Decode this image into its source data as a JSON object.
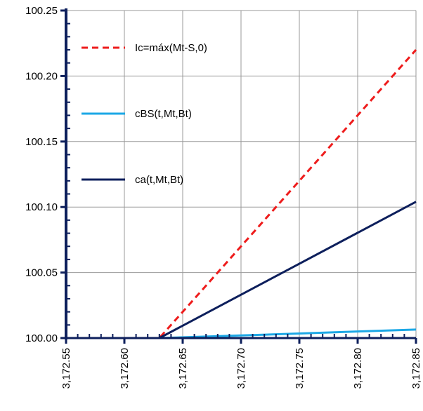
{
  "chart_data": {
    "type": "line",
    "title": "",
    "xlabel": "",
    "ylabel": "",
    "xlim": [
      3172.55,
      3172.85
    ],
    "ylim": [
      100.0,
      100.25
    ],
    "grid": true,
    "legend_position": "top-left",
    "x_ticks": [
      3172.55,
      3172.6,
      3172.65,
      3172.7,
      3172.75,
      3172.8,
      3172.85
    ],
    "x_tick_labels": [
      "3,172.55",
      "3,172.60",
      "3,172.65",
      "3,172.70",
      "3,172.75",
      "3,172.80",
      "3,172.85"
    ],
    "y_ticks": [
      100.0,
      100.05,
      100.1,
      100.15,
      100.2,
      100.25
    ],
    "y_tick_labels": [
      "100.00",
      "100.05",
      "100.10",
      "100.15",
      "100.20",
      "100.25"
    ],
    "series": [
      {
        "name": "Ic=máx(Mt-S,0)",
        "color": "#ee1c1c",
        "style": "dashed",
        "points": [
          [
            3172.55,
            100.0
          ],
          [
            3172.63,
            100.0
          ],
          [
            3172.85,
            100.22
          ]
        ]
      },
      {
        "name": "cBS(t,Mt,Bt)",
        "color": "#1ca8e6",
        "style": "solid",
        "points": [
          [
            3172.55,
            100.0
          ],
          [
            3172.63,
            100.0
          ],
          [
            3172.7,
            100.002
          ],
          [
            3172.75,
            100.0035
          ],
          [
            3172.8,
            100.005
          ],
          [
            3172.85,
            100.0065
          ]
        ]
      },
      {
        "name": "ca(t,Mt,Bt)",
        "color": "#0d1f5c",
        "style": "solid",
        "points": [
          [
            3172.55,
            100.0
          ],
          [
            3172.63,
            100.0
          ],
          [
            3172.85,
            100.104
          ]
        ]
      }
    ]
  }
}
